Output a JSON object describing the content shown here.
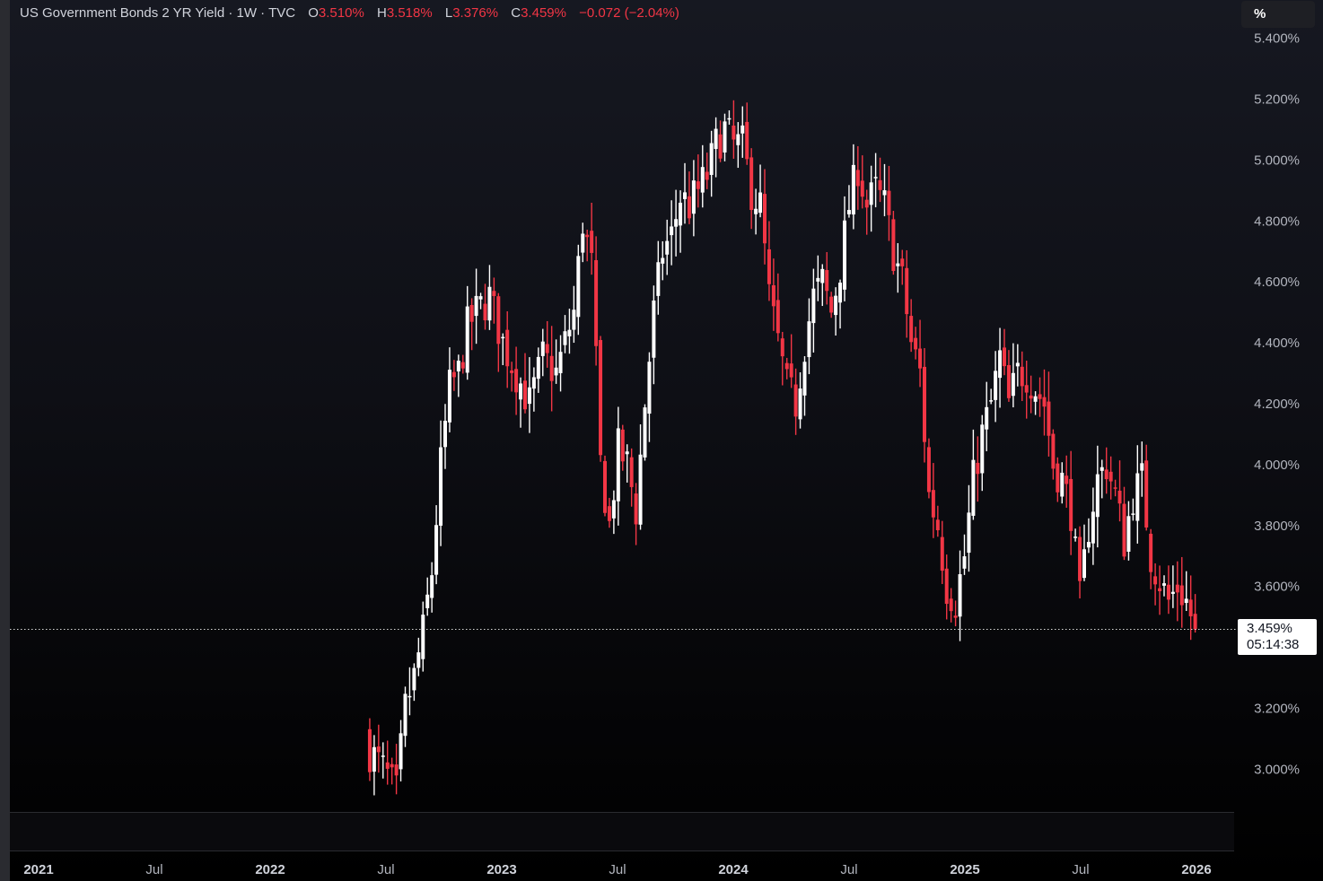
{
  "header": {
    "symbol_title": "US Government Bonds 2 YR Yield · 1W · TVC",
    "open_label": "O",
    "open_value": "3.510%",
    "high_label": "H",
    "high_value": "3.518%",
    "low_label": "L",
    "low_value": "3.376%",
    "close_label": "C",
    "close_value": "3.459%",
    "change": "−0.072 (−2.04%)"
  },
  "scale_unit": "%",
  "last_price": {
    "value": "3.459%",
    "countdown": "05:14:38"
  },
  "colors": {
    "up": "#ffffff",
    "down": "#f23645",
    "background": "#0e0f15",
    "axis_text": "#b2b5be"
  },
  "chart_data": {
    "type": "candlestick",
    "title": "US Government Bonds 2 YR Yield · 1W · TVC",
    "ylim": [
      2.85,
      5.45
    ],
    "y_ticks": [
      "5.400%",
      "5.200%",
      "5.000%",
      "4.800%",
      "4.600%",
      "4.400%",
      "4.200%",
      "4.000%",
      "3.800%",
      "3.600%",
      "3.200%",
      "3.000%"
    ],
    "y_tick_values": [
      5.4,
      5.2,
      5.0,
      4.8,
      4.6,
      4.4,
      4.2,
      4.0,
      3.8,
      3.6,
      3.2,
      3.0
    ],
    "x_ticks": [
      "2021",
      "Jul",
      "2022",
      "Jul",
      "2023",
      "Jul",
      "2024",
      "Jul",
      "2025",
      "Jul",
      "2026"
    ],
    "x_tick_values": [
      2021.0,
      2021.5,
      2022.0,
      2022.5,
      2023.0,
      2023.5,
      2024.0,
      2024.5,
      2025.0,
      2025.5,
      2026.0
    ],
    "x_tick_bold": [
      true,
      false,
      true,
      false,
      true,
      false,
      true,
      false,
      true,
      false,
      true
    ],
    "x_range": [
      2021.0,
      2026.0
    ],
    "first_week": 2022.43,
    "close_path": [
      [
        0,
        3.06
      ],
      [
        3,
        3.0
      ],
      [
        6,
        2.92
      ],
      [
        8,
        3.2
      ],
      [
        10,
        3.3
      ],
      [
        12,
        3.45
      ],
      [
        14,
        3.65
      ],
      [
        16,
        4.0
      ],
      [
        18,
        4.25
      ],
      [
        20,
        4.3
      ],
      [
        22,
        4.45
      ],
      [
        24,
        4.5
      ],
      [
        27,
        4.55
      ],
      [
        30,
        4.4
      ],
      [
        33,
        4.3
      ],
      [
        36,
        4.2
      ],
      [
        39,
        4.35
      ],
      [
        42,
        4.3
      ],
      [
        44,
        4.4
      ],
      [
        46,
        4.5
      ],
      [
        48,
        4.8
      ],
      [
        50,
        4.65
      ],
      [
        52,
        4.0
      ],
      [
        54,
        3.8
      ],
      [
        56,
        4.05
      ],
      [
        58,
        4.0
      ],
      [
        60,
        3.85
      ],
      [
        62,
        4.2
      ],
      [
        64,
        4.5
      ],
      [
        66,
        4.7
      ],
      [
        68,
        4.75
      ],
      [
        70,
        4.88
      ],
      [
        72,
        4.85
      ],
      [
        74,
        4.9
      ],
      [
        76,
        4.95
      ],
      [
        78,
        5.05
      ],
      [
        80,
        5.1
      ],
      [
        82,
        5.05
      ],
      [
        84,
        5.05
      ],
      [
        86,
        4.9
      ],
      [
        88,
        4.85
      ],
      [
        90,
        4.55
      ],
      [
        92,
        4.4
      ],
      [
        94,
        4.25
      ],
      [
        96,
        4.2
      ],
      [
        98,
        4.4
      ],
      [
        100,
        4.55
      ],
      [
        102,
        4.6
      ],
      [
        104,
        4.5
      ],
      [
        106,
        4.65
      ],
      [
        108,
        4.85
      ],
      [
        110,
        4.98
      ],
      [
        112,
        4.85
      ],
      [
        114,
        4.9
      ],
      [
        116,
        4.85
      ],
      [
        118,
        4.7
      ],
      [
        120,
        4.6
      ],
      [
        122,
        4.4
      ],
      [
        124,
        4.3
      ],
      [
        126,
        3.9
      ],
      [
        128,
        3.8
      ],
      [
        130,
        3.6
      ],
      [
        132,
        3.55
      ],
      [
        134,
        3.7
      ],
      [
        136,
        3.95
      ],
      [
        138,
        4.1
      ],
      [
        140,
        4.2
      ],
      [
        142,
        4.35
      ],
      [
        144,
        4.2
      ],
      [
        146,
        4.3
      ],
      [
        148,
        4.3
      ],
      [
        150,
        4.25
      ],
      [
        152,
        4.2
      ],
      [
        154,
        4.0
      ],
      [
        156,
        3.95
      ],
      [
        158,
        3.85
      ],
      [
        160,
        3.55
      ],
      [
        162,
        3.8
      ],
      [
        164,
        3.95
      ],
      [
        166,
        4.0
      ],
      [
        168,
        3.9
      ],
      [
        170,
        3.75
      ],
      [
        172,
        3.9
      ],
      [
        174,
        3.95
      ],
      [
        176,
        3.7
      ],
      [
        178,
        3.62
      ],
      [
        180,
        3.55
      ],
      [
        182,
        3.6
      ],
      [
        184,
        3.55
      ],
      [
        186,
        3.459
      ]
    ],
    "last_close": 3.459
  }
}
